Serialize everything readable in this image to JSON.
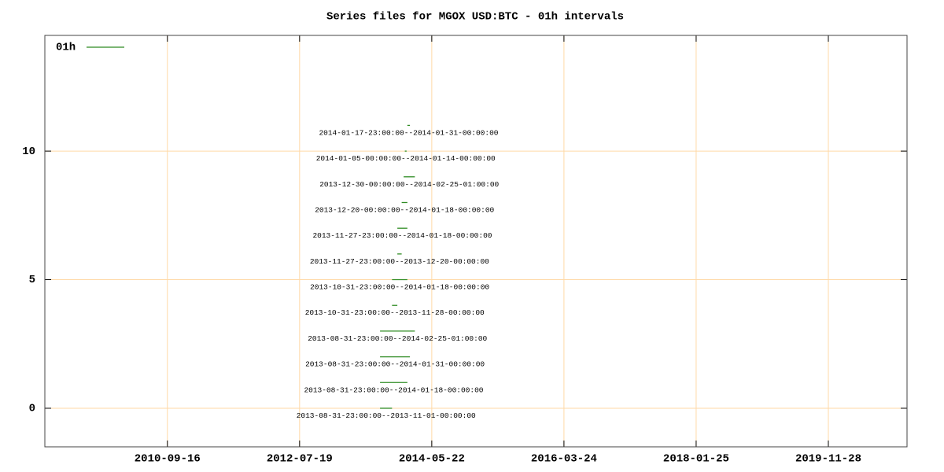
{
  "chart_data": {
    "type": "xrange",
    "title": "Series files for MGOX USD:BTC - 01h intervals",
    "xlim": [
      "2009-01-01",
      "2021-01-01"
    ],
    "xticks": [
      "2010-09-16",
      "2012-07-19",
      "2014-05-22",
      "2016-03-24",
      "2018-01-25",
      "2019-11-28"
    ],
    "ylim": [
      -1.5,
      14.5
    ],
    "yticks": [
      0,
      5,
      10
    ],
    "grid": true,
    "legend": "top-left",
    "series": [
      {
        "name": "01h",
        "color": "#2e8b22",
        "values": [
          0,
          1,
          2,
          3,
          4,
          5,
          6,
          7,
          8,
          9,
          10,
          11
        ],
        "start": [
          "2013-08-31 23:00:00",
          "2013-08-31 23:00:00",
          "2013-08-31 23:00:00",
          "2013-08-31 23:00:00",
          "2013-10-31 23:00:00",
          "2013-10-31 23:00:00",
          "2013-11-27 23:00:00",
          "2013-11-27 23:00:00",
          "2013-12-20 00:00:00",
          "2013-12-30 00:00:00",
          "2014-01-05 00:00:00",
          "2014-01-17 23:00:00"
        ],
        "end": [
          "2013-11-01 00:00:00",
          "2014-01-18 00:00:00",
          "2014-01-31 00:00:00",
          "2014-02-25 01:00:00",
          "2013-11-28 00:00:00",
          "2014-01-18 00:00:00",
          "2013-12-20 00:00:00",
          "2014-01-18 00:00:00",
          "2014-01-18 00:00:00",
          "2014-02-25 01:00:00",
          "2014-01-14 00:00:00",
          "2014-01-31 00:00:00"
        ],
        "labels": [
          "2013-08-31-23:00:00--2013-11-01-00:00:00",
          "2013-08-31-23:00:00--2014-01-18-00:00:00",
          "2013-08-31-23:00:00--2014-01-31-00:00:00",
          "2013-08-31-23:00:00--2014-02-25-01:00:00",
          "2013-10-31-23:00:00--2013-11-28-00:00:00",
          "2013-10-31-23:00:00--2014-01-18-00:00:00",
          "2013-11-27-23:00:00--2013-12-20-00:00:00",
          "2013-11-27-23:00:00--2014-01-18-00:00:00",
          "2013-12-20-00:00:00--2014-01-18-00:00:00",
          "2013-12-30-00:00:00--2014-02-25-01:00:00",
          "2014-01-05-00:00:00--2014-01-14-00:00:00",
          "2014-01-17-23:00:00--2014-01-31-00:00:00"
        ]
      }
    ]
  }
}
